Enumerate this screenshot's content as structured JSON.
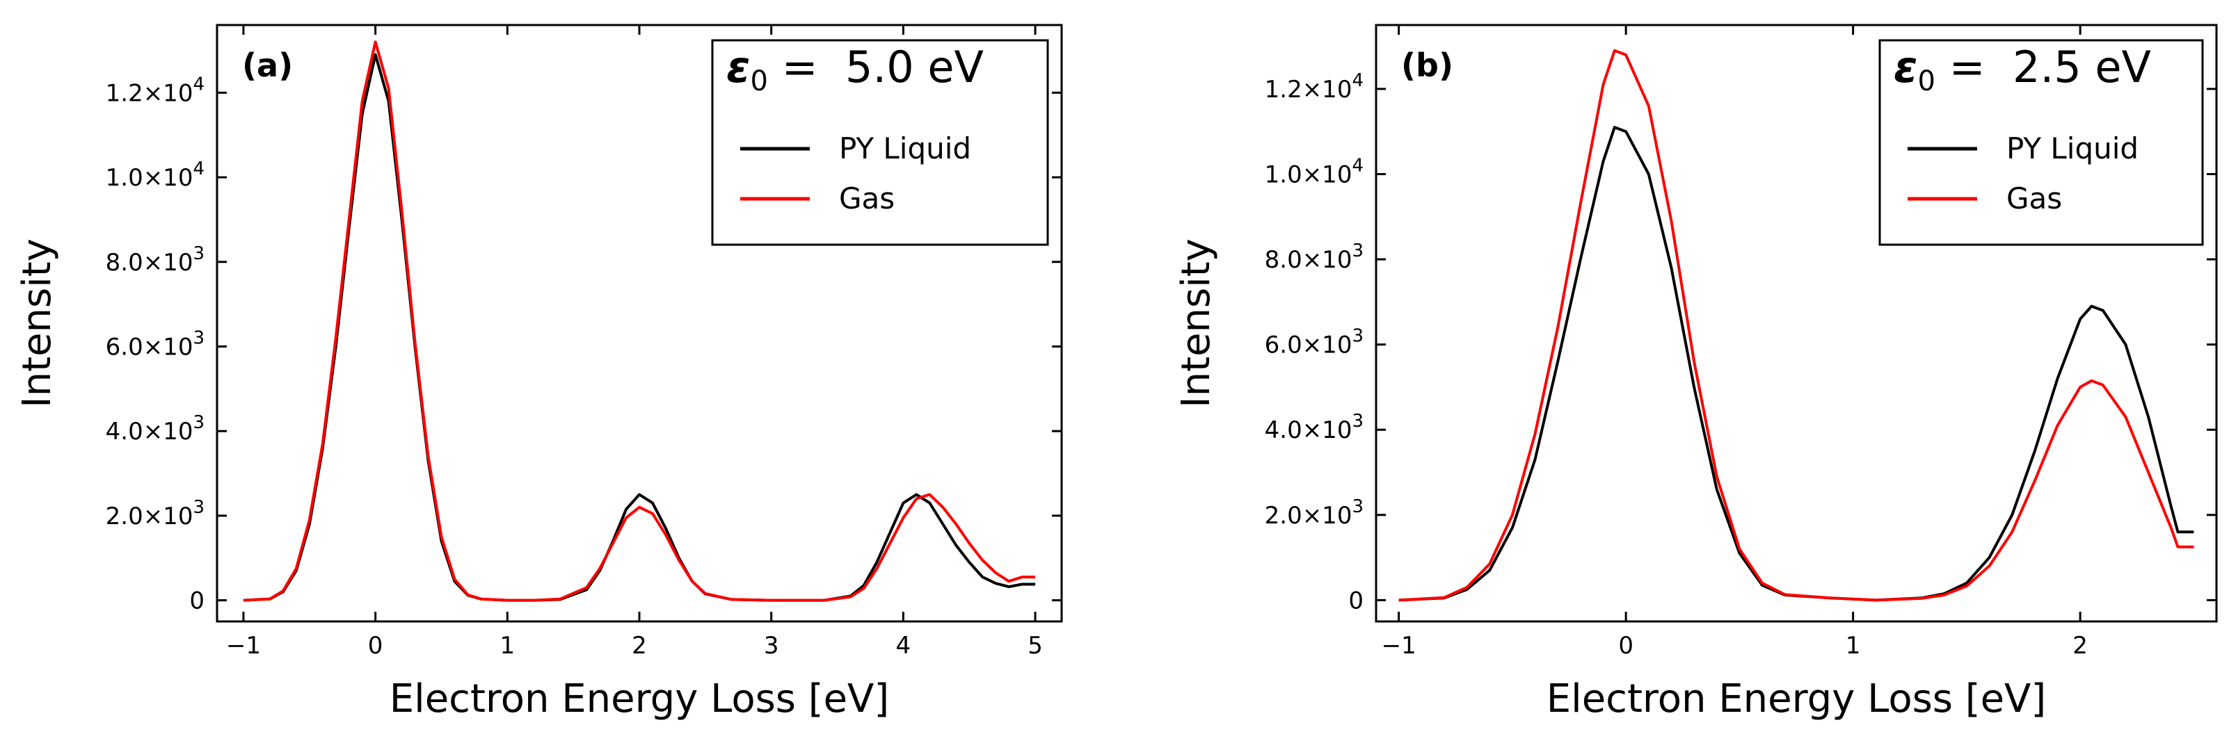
{
  "figure": {
    "panels": [
      {
        "label": "(a)",
        "legend_title": {
          "symbol": "ε",
          "sub": "0",
          "value": " =  5.0 eV"
        },
        "ylabel": "Intensity",
        "xlabel": "Electron Energy Loss [eV]",
        "x_ticks": [
          "−1",
          "0",
          "1",
          "2",
          "3",
          "4",
          "5"
        ],
        "y_ticks": [
          {
            "mant": "0",
            "exp": ""
          },
          {
            "mant": "2.0×10",
            "exp": "3"
          },
          {
            "mant": "4.0×10",
            "exp": "3"
          },
          {
            "mant": "6.0×10",
            "exp": "3"
          },
          {
            "mant": "8.0×10",
            "exp": "3"
          },
          {
            "mant": "1.0×10",
            "exp": "4"
          },
          {
            "mant": "1.2×10",
            "exp": "4"
          }
        ]
      },
      {
        "label": "(b)",
        "legend_title": {
          "symbol": "ε",
          "sub": "0",
          "value": " =  2.5 eV"
        },
        "ylabel": "Intensity",
        "xlabel": "Electron Energy Loss [eV]",
        "x_ticks": [
          "−1",
          "0",
          "1",
          "2"
        ],
        "y_ticks": [
          {
            "mant": "0",
            "exp": ""
          },
          {
            "mant": "2.0×10",
            "exp": "3"
          },
          {
            "mant": "4.0×10",
            "exp": "3"
          },
          {
            "mant": "6.0×10",
            "exp": "3"
          },
          {
            "mant": "8.0×10",
            "exp": "3"
          },
          {
            "mant": "1.0×10",
            "exp": "4"
          },
          {
            "mant": "1.2×10",
            "exp": "4"
          }
        ]
      }
    ]
  },
  "chart_data": [
    {
      "type": "line",
      "panel": "(a)",
      "xlabel": "Electron Energy Loss [eV]",
      "ylabel": "Intensity",
      "xlim": [
        -1.2,
        5.2
      ],
      "ylim": [
        -500,
        13600
      ],
      "x_ticks": [
        -1,
        0,
        1,
        2,
        3,
        4,
        5
      ],
      "y_ticks": [
        0,
        2000,
        4000,
        6000,
        8000,
        10000,
        12000
      ],
      "grid": false,
      "legend_position": "top-right",
      "series": [
        {
          "name": "PY Liquid",
          "color": "#000000",
          "points": [
            [
              -1.0,
              0
            ],
            [
              -0.8,
              30
            ],
            [
              -0.7,
              200
            ],
            [
              -0.6,
              700
            ],
            [
              -0.5,
              1800
            ],
            [
              -0.4,
              3600
            ],
            [
              -0.3,
              6000
            ],
            [
              -0.2,
              8800
            ],
            [
              -0.1,
              11500
            ],
            [
              0.0,
              12900
            ],
            [
              0.1,
              11800
            ],
            [
              0.2,
              9000
            ],
            [
              0.3,
              6000
            ],
            [
              0.4,
              3300
            ],
            [
              0.5,
              1400
            ],
            [
              0.6,
              450
            ],
            [
              0.7,
              120
            ],
            [
              0.8,
              30
            ],
            [
              1.0,
              0
            ],
            [
              1.2,
              0
            ],
            [
              1.4,
              20
            ],
            [
              1.6,
              250
            ],
            [
              1.7,
              700
            ],
            [
              1.8,
              1400
            ],
            [
              1.9,
              2150
            ],
            [
              2.0,
              2500
            ],
            [
              2.1,
              2300
            ],
            [
              2.2,
              1700
            ],
            [
              2.3,
              1000
            ],
            [
              2.4,
              450
            ],
            [
              2.5,
              150
            ],
            [
              2.7,
              20
            ],
            [
              3.0,
              0
            ],
            [
              3.4,
              0
            ],
            [
              3.6,
              100
            ],
            [
              3.7,
              350
            ],
            [
              3.8,
              900
            ],
            [
              3.9,
              1600
            ],
            [
              4.0,
              2300
            ],
            [
              4.1,
              2500
            ],
            [
              4.2,
              2300
            ],
            [
              4.3,
              1800
            ],
            [
              4.4,
              1300
            ],
            [
              4.5,
              900
            ],
            [
              4.6,
              550
            ],
            [
              4.7,
              400
            ],
            [
              4.8,
              320
            ],
            [
              4.9,
              380
            ],
            [
              5.0,
              380
            ]
          ]
        },
        {
          "name": "Gas",
          "color": "#ff0000",
          "points": [
            [
              -1.0,
              0
            ],
            [
              -0.8,
              30
            ],
            [
              -0.7,
              220
            ],
            [
              -0.6,
              750
            ],
            [
              -0.5,
              1900
            ],
            [
              -0.4,
              3700
            ],
            [
              -0.3,
              6200
            ],
            [
              -0.2,
              9000
            ],
            [
              -0.1,
              11800
            ],
            [
              0.0,
              13200
            ],
            [
              0.1,
              12100
            ],
            [
              0.2,
              9200
            ],
            [
              0.3,
              6100
            ],
            [
              0.4,
              3400
            ],
            [
              0.5,
              1500
            ],
            [
              0.6,
              500
            ],
            [
              0.7,
              130
            ],
            [
              0.8,
              30
            ],
            [
              1.0,
              0
            ],
            [
              1.2,
              0
            ],
            [
              1.4,
              30
            ],
            [
              1.6,
              300
            ],
            [
              1.7,
              750
            ],
            [
              1.8,
              1350
            ],
            [
              1.9,
              1950
            ],
            [
              2.0,
              2200
            ],
            [
              2.1,
              2050
            ],
            [
              2.2,
              1550
            ],
            [
              2.3,
              950
            ],
            [
              2.4,
              450
            ],
            [
              2.5,
              160
            ],
            [
              2.7,
              20
            ],
            [
              3.0,
              0
            ],
            [
              3.4,
              0
            ],
            [
              3.6,
              80
            ],
            [
              3.7,
              280
            ],
            [
              3.8,
              750
            ],
            [
              3.9,
              1350
            ],
            [
              4.0,
              1950
            ],
            [
              4.1,
              2400
            ],
            [
              4.2,
              2500
            ],
            [
              4.3,
              2200
            ],
            [
              4.4,
              1800
            ],
            [
              4.5,
              1350
            ],
            [
              4.6,
              950
            ],
            [
              4.7,
              650
            ],
            [
              4.8,
              450
            ],
            [
              4.9,
              550
            ],
            [
              5.0,
              550
            ]
          ]
        }
      ]
    },
    {
      "type": "line",
      "panel": "(b)",
      "xlabel": "Electron Energy Loss [eV]",
      "ylabel": "Intensity",
      "xlim": [
        -1.1,
        2.6
      ],
      "ylim": [
        -500,
        13500
      ],
      "x_ticks": [
        -1,
        0,
        1,
        2
      ],
      "y_ticks": [
        0,
        2000,
        4000,
        6000,
        8000,
        10000,
        12000
      ],
      "grid": false,
      "legend_position": "top-right",
      "series": [
        {
          "name": "PY Liquid",
          "color": "#000000",
          "points": [
            [
              -1.0,
              0
            ],
            [
              -0.8,
              50
            ],
            [
              -0.7,
              250
            ],
            [
              -0.6,
              700
            ],
            [
              -0.5,
              1700
            ],
            [
              -0.4,
              3300
            ],
            [
              -0.3,
              5600
            ],
            [
              -0.2,
              8000
            ],
            [
              -0.1,
              10300
            ],
            [
              -0.05,
              11100
            ],
            [
              0.0,
              11000
            ],
            [
              0.1,
              10000
            ],
            [
              0.2,
              7800
            ],
            [
              0.3,
              5000
            ],
            [
              0.4,
              2600
            ],
            [
              0.5,
              1100
            ],
            [
              0.6,
              350
            ],
            [
              0.7,
              120
            ],
            [
              0.9,
              50
            ],
            [
              1.1,
              0
            ],
            [
              1.3,
              50
            ],
            [
              1.4,
              150
            ],
            [
              1.5,
              400
            ],
            [
              1.6,
              1000
            ],
            [
              1.7,
              2000
            ],
            [
              1.8,
              3500
            ],
            [
              1.9,
              5200
            ],
            [
              2.0,
              6600
            ],
            [
              2.05,
              6900
            ],
            [
              2.1,
              6800
            ],
            [
              2.2,
              6000
            ],
            [
              2.3,
              4300
            ],
            [
              2.4,
              2200
            ],
            [
              2.43,
              1600
            ],
            [
              2.5,
              1600
            ]
          ]
        },
        {
          "name": "Gas",
          "color": "#ff0000",
          "points": [
            [
              -1.0,
              0
            ],
            [
              -0.8,
              60
            ],
            [
              -0.7,
              300
            ],
            [
              -0.6,
              850
            ],
            [
              -0.5,
              2000
            ],
            [
              -0.4,
              3900
            ],
            [
              -0.3,
              6400
            ],
            [
              -0.2,
              9300
            ],
            [
              -0.1,
              12100
            ],
            [
              -0.05,
              12900
            ],
            [
              0.0,
              12800
            ],
            [
              0.1,
              11600
            ],
            [
              0.2,
              8900
            ],
            [
              0.3,
              5600
            ],
            [
              0.4,
              2900
            ],
            [
              0.5,
              1200
            ],
            [
              0.6,
              400
            ],
            [
              0.7,
              130
            ],
            [
              0.9,
              50
            ],
            [
              1.1,
              0
            ],
            [
              1.3,
              40
            ],
            [
              1.4,
              120
            ],
            [
              1.5,
              330
            ],
            [
              1.6,
              800
            ],
            [
              1.7,
              1600
            ],
            [
              1.8,
              2800
            ],
            [
              1.9,
              4100
            ],
            [
              2.0,
              5000
            ],
            [
              2.05,
              5150
            ],
            [
              2.1,
              5050
            ],
            [
              2.2,
              4300
            ],
            [
              2.3,
              3000
            ],
            [
              2.4,
              1700
            ],
            [
              2.43,
              1250
            ],
            [
              2.5,
              1250
            ]
          ]
        }
      ]
    }
  ]
}
